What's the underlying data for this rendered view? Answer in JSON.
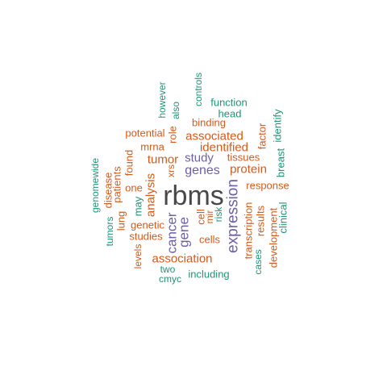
{
  "colors": {
    "top_word": "#484848",
    "purple": "#6b5fa8",
    "orange": "#d45a19",
    "green": "#1f9577",
    "background": "#ffffff"
  },
  "words": [
    "rbms",
    "expression",
    "cancer",
    "genes",
    "gene",
    "study",
    "association",
    "associated",
    "identified",
    "analysis",
    "tumor",
    "protein",
    "response",
    "tissues",
    "transcription",
    "factor",
    "identify",
    "potential",
    "one",
    "genetic",
    "cells",
    "role",
    "binding",
    "mrna",
    "studies",
    "lung",
    "patients",
    "disease",
    "found",
    "results",
    "development",
    "cell",
    "mir",
    "risk",
    "including",
    "cases",
    "clinical",
    "breast",
    "may",
    "two",
    "cmyc",
    "xrs",
    "levels",
    "tumors",
    "genomewide",
    "however",
    "also",
    "controls",
    "function",
    "head"
  ]
}
